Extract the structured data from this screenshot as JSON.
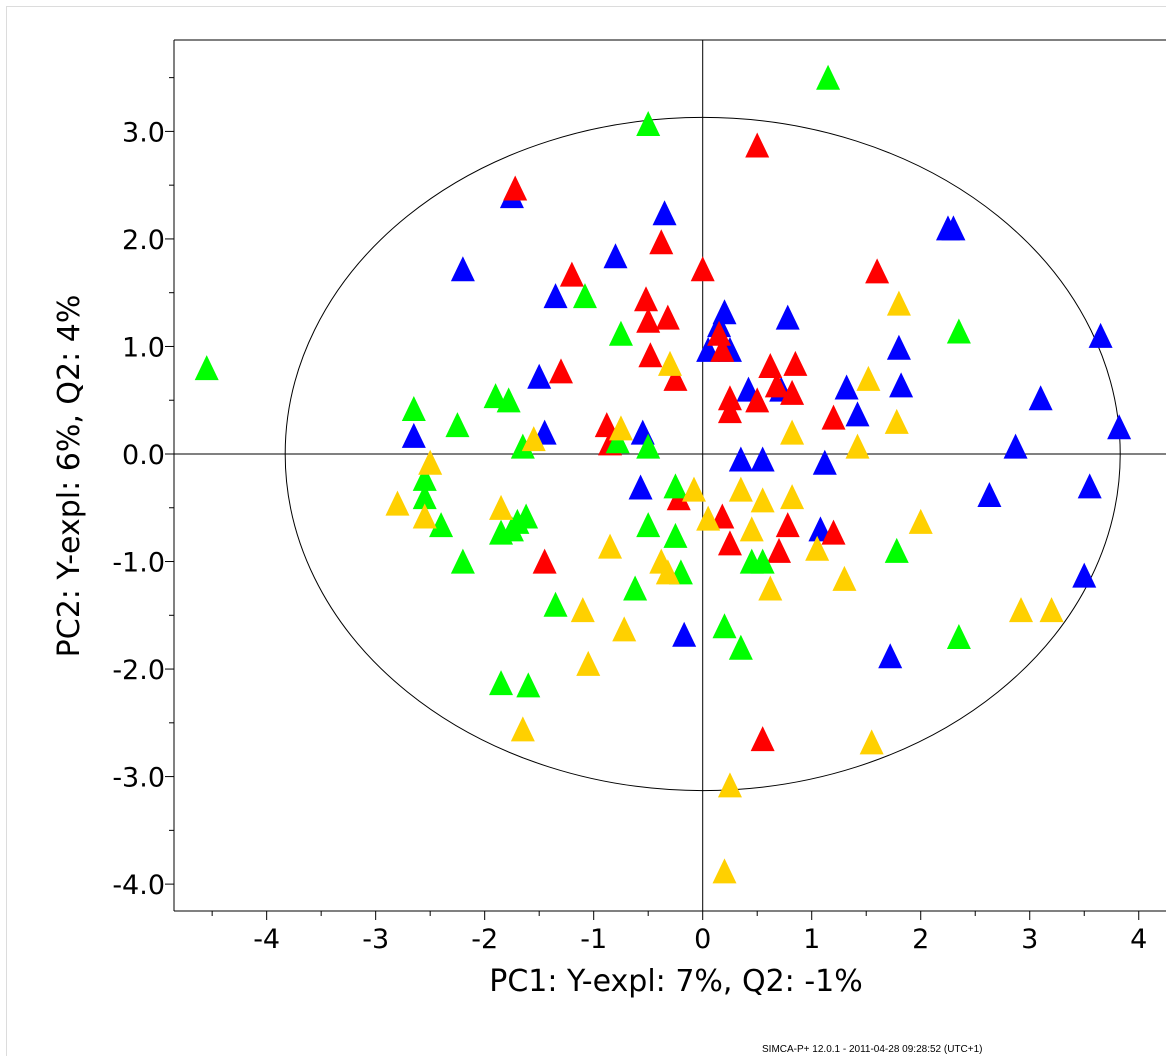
{
  "chart_data": {
    "type": "scatter",
    "xlabel": "PC1: Y-expl: 7%, Q2: -1%",
    "ylabel": "PC2: Y-expl: 6%, Q2: 4%",
    "xlim": [
      -4.85,
      4.25
    ],
    "ylim": [
      -4.25,
      3.85
    ],
    "x_ticks": [
      "-4",
      "-3",
      "-2",
      "-1",
      "0",
      "1",
      "2",
      "3",
      "4"
    ],
    "y_ticks": [
      "3.0",
      "2.0",
      "1.0",
      "0.0",
      "-1.0",
      "-2.0",
      "-3.0",
      "-4.0"
    ],
    "footer": "SIMCA-P+ 12.0.1 - 2011-04-28 09:28:52 (UTC+1)",
    "ellipse": {
      "rx": 3.83,
      "ry": 3.13
    },
    "marker": "triangle",
    "series": [
      {
        "color": "#0000ff",
        "points": [
          [
            -1.75,
            2.38
          ],
          [
            -0.35,
            2.22
          ],
          [
            -2.2,
            1.7
          ],
          [
            -0.8,
            1.82
          ],
          [
            -1.35,
            1.45
          ],
          [
            0.2,
            1.3
          ],
          [
            0.15,
            1.18
          ],
          [
            0.05,
            0.95
          ],
          [
            0.25,
            0.95
          ],
          [
            0.78,
            1.25
          ],
          [
            2.25,
            2.08
          ],
          [
            2.3,
            2.08
          ],
          [
            3.65,
            1.08
          ],
          [
            1.8,
            0.97
          ],
          [
            1.82,
            0.62
          ],
          [
            1.32,
            0.6
          ],
          [
            0.42,
            0.58
          ],
          [
            0.72,
            0.58
          ],
          [
            1.42,
            0.35
          ],
          [
            3.1,
            0.5
          ],
          [
            3.82,
            0.23
          ],
          [
            2.87,
            0.05
          ],
          [
            -1.5,
            0.7
          ],
          [
            -1.45,
            0.18
          ],
          [
            -2.65,
            0.15
          ],
          [
            -0.55,
            0.18
          ],
          [
            0.35,
            -0.07
          ],
          [
            0.55,
            -0.07
          ],
          [
            1.12,
            -0.1
          ],
          [
            2.63,
            -0.4
          ],
          [
            3.55,
            -0.32
          ],
          [
            -0.57,
            -0.33
          ],
          [
            1.08,
            -0.72
          ],
          [
            3.5,
            -1.15
          ],
          [
            -0.17,
            -1.7
          ],
          [
            1.72,
            -1.9
          ]
        ]
      },
      {
        "color": "#ff0000",
        "points": [
          [
            -1.72,
            2.45
          ],
          [
            0.5,
            2.85
          ],
          [
            -0.38,
            1.95
          ],
          [
            0.0,
            1.7
          ],
          [
            -1.2,
            1.65
          ],
          [
            1.6,
            1.68
          ],
          [
            -0.52,
            1.42
          ],
          [
            -0.5,
            1.22
          ],
          [
            -0.32,
            1.25
          ],
          [
            0.15,
            1.1
          ],
          [
            0.18,
            0.95
          ],
          [
            -0.48,
            0.9
          ],
          [
            -0.25,
            0.68
          ],
          [
            -1.3,
            0.75
          ],
          [
            0.62,
            0.8
          ],
          [
            0.85,
            0.82
          ],
          [
            0.68,
            0.62
          ],
          [
            0.5,
            0.48
          ],
          [
            0.25,
            0.5
          ],
          [
            0.82,
            0.55
          ],
          [
            0.25,
            0.38
          ],
          [
            1.2,
            0.32
          ],
          [
            -0.88,
            0.25
          ],
          [
            -0.85,
            0.08
          ],
          [
            -0.22,
            -0.43
          ],
          [
            0.18,
            -0.6
          ],
          [
            0.78,
            -0.68
          ],
          [
            0.25,
            -0.85
          ],
          [
            0.7,
            -0.92
          ],
          [
            1.2,
            -0.75
          ],
          [
            -1.45,
            -1.02
          ],
          [
            0.55,
            -2.67
          ]
        ]
      },
      {
        "color": "#00ff00",
        "points": [
          [
            1.15,
            3.48
          ],
          [
            -0.5,
            3.05
          ],
          [
            -1.08,
            1.45
          ],
          [
            -0.75,
            1.1
          ],
          [
            2.35,
            1.12
          ],
          [
            -4.55,
            0.78
          ],
          [
            -1.9,
            0.52
          ],
          [
            -1.78,
            0.48
          ],
          [
            -2.65,
            0.4
          ],
          [
            -2.25,
            0.25
          ],
          [
            -1.65,
            0.05
          ],
          [
            -0.78,
            0.1
          ],
          [
            -0.5,
            0.05
          ],
          [
            -2.55,
            -0.25
          ],
          [
            -2.55,
            -0.42
          ],
          [
            -0.25,
            -0.32
          ],
          [
            -2.4,
            -0.68
          ],
          [
            -1.62,
            -0.6
          ],
          [
            -1.7,
            -0.65
          ],
          [
            -1.85,
            -0.75
          ],
          [
            -1.75,
            -0.72
          ],
          [
            -0.5,
            -0.68
          ],
          [
            -0.25,
            -0.78
          ],
          [
            -2.2,
            -1.02
          ],
          [
            -0.2,
            -1.12
          ],
          [
            0.45,
            -1.02
          ],
          [
            0.55,
            -1.02
          ],
          [
            1.78,
            -0.92
          ],
          [
            -0.62,
            -1.27
          ],
          [
            -1.35,
            -1.42
          ],
          [
            0.2,
            -1.62
          ],
          [
            0.35,
            -1.82
          ],
          [
            2.35,
            -1.72
          ],
          [
            -1.85,
            -2.15
          ],
          [
            -1.6,
            -2.17
          ]
        ]
      },
      {
        "color": "#ffd000",
        "points": [
          [
            1.8,
            1.38
          ],
          [
            -0.3,
            0.82
          ],
          [
            1.52,
            0.68
          ],
          [
            -0.75,
            0.22
          ],
          [
            0.82,
            0.18
          ],
          [
            1.78,
            0.28
          ],
          [
            1.42,
            0.05
          ],
          [
            -2.5,
            -0.1
          ],
          [
            -1.55,
            0.12
          ],
          [
            -2.8,
            -0.48
          ],
          [
            -2.55,
            -0.6
          ],
          [
            -1.85,
            -0.52
          ],
          [
            0.35,
            -0.35
          ],
          [
            0.55,
            -0.45
          ],
          [
            0.82,
            -0.42
          ],
          [
            0.05,
            -0.62
          ],
          [
            0.45,
            -0.72
          ],
          [
            1.05,
            -0.9
          ],
          [
            2.0,
            -0.65
          ],
          [
            -0.85,
            -0.88
          ],
          [
            -0.38,
            -1.02
          ],
          [
            -0.32,
            -1.12
          ],
          [
            1.3,
            -1.18
          ],
          [
            0.62,
            -1.27
          ],
          [
            -1.1,
            -1.47
          ],
          [
            -0.72,
            -1.65
          ],
          [
            -1.05,
            -1.97
          ],
          [
            2.92,
            -1.47
          ],
          [
            3.2,
            -1.47
          ],
          [
            -1.65,
            -2.58
          ],
          [
            1.55,
            -2.7
          ],
          [
            0.25,
            -3.1
          ],
          [
            0.2,
            -3.9
          ],
          [
            -0.08,
            -0.35
          ]
        ]
      }
    ]
  }
}
